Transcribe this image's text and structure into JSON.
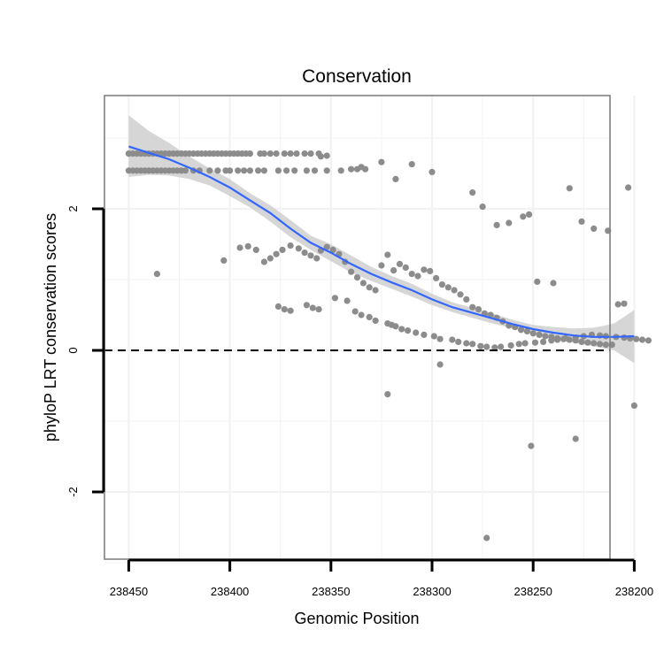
{
  "chart_data": {
    "type": "scatter",
    "title": "Conservation",
    "xlabel": "Genomic Position",
    "ylabel": "phyloP LRT conservation scores",
    "xlim": [
      238212,
      238462
    ],
    "x_reversed": true,
    "ylim": [
      -2.95,
      3.6
    ],
    "x_ticks": [
      238450,
      238400,
      238350,
      238300,
      238250,
      238200
    ],
    "x_tick_labels": [
      "238450",
      "238400",
      "238350",
      "238300",
      "238250",
      "238200"
    ],
    "y_ticks": [
      -2,
      0,
      2
    ],
    "y_tick_labels": [
      "-2",
      "0",
      "2"
    ],
    "reference_line": {
      "y": 0,
      "style": "dashed"
    },
    "grid": true,
    "legend": "none",
    "colors": {
      "points": "#8c8c8c",
      "smooth_line": "#3366ff",
      "confidence_band": "#cfcfcf",
      "panel_border": "#808080",
      "grid": "#f2f2f2",
      "axis_ticks": "#000000"
    },
    "series": [
      {
        "kind": "points",
        "x": [
          238450,
          238448,
          238446,
          238444,
          238442,
          238440,
          238438,
          238436,
          238434,
          238432,
          238430,
          238428,
          238426,
          238424,
          238422,
          238420,
          238418,
          238416,
          238414,
          238412,
          238410,
          238408,
          238406,
          238404,
          238402,
          238400,
          238398,
          238396,
          238394,
          238392,
          238390,
          238385,
          238383,
          238380,
          238377,
          238373,
          238370,
          238367,
          238363,
          238360,
          238356,
          238352,
          238450,
          238448,
          238446,
          238444,
          238442,
          238440,
          238438,
          238436,
          238434,
          238432,
          238430,
          238428,
          238426,
          238424,
          238422,
          238418,
          238415,
          238410,
          238406,
          238402,
          238400,
          238396,
          238393,
          238390,
          238386,
          238383,
          238376,
          238372,
          238368,
          238362,
          238358,
          238352,
          238345,
          238340,
          238337,
          238333,
          238436,
          238403,
          238395,
          238391,
          238387,
          238383,
          238380,
          238377,
          238374,
          238370,
          238366,
          238363,
          238360,
          238357,
          238355,
          238352,
          238349,
          238346,
          238343,
          238340,
          238337,
          238334,
          238331,
          238328,
          238325,
          238322,
          238319,
          238316,
          238313,
          238310,
          238307,
          238304,
          238301,
          238298,
          238295,
          238292,
          238289,
          238286,
          238283,
          238280,
          238277,
          238274,
          238271,
          238268,
          238265,
          238262,
          238259,
          238256,
          238253,
          238250,
          238247,
          238244,
          238241,
          238238,
          238235,
          238232,
          238229,
          238226,
          238223,
          238220,
          238217,
          238214,
          238211,
          238376,
          238373,
          238370,
          238362,
          238359,
          238356,
          238348,
          238342,
          238338,
          238335,
          238331,
          238328,
          238322,
          238320,
          238318,
          238315,
          238312,
          238308,
          238304,
          238299,
          238296,
          238290,
          238287,
          238283,
          238280,
          238276,
          238273,
          238269,
          238266,
          238261,
          238257,
          238254,
          238249,
          238245,
          238241,
          238238,
          238234,
          238229,
          238225,
          238221,
          238217,
          238214,
          238209,
          238205,
          238202,
          238199,
          238196,
          238193,
          238355,
          238335,
          238325,
          238318,
          238310,
          238300,
          238280,
          238275,
          238268,
          238262,
          238255,
          238252,
          238248,
          238240,
          238232,
          238226,
          238220,
          238213,
          238208,
          238205,
          238203,
          238322,
          238296,
          238273,
          238251,
          238229,
          238200
        ],
        "y": [
          2.78,
          2.78,
          2.78,
          2.78,
          2.78,
          2.78,
          2.78,
          2.78,
          2.78,
          2.78,
          2.78,
          2.78,
          2.78,
          2.78,
          2.78,
          2.78,
          2.78,
          2.78,
          2.78,
          2.78,
          2.78,
          2.78,
          2.78,
          2.78,
          2.78,
          2.78,
          2.78,
          2.78,
          2.78,
          2.78,
          2.78,
          2.78,
          2.78,
          2.78,
          2.78,
          2.78,
          2.78,
          2.78,
          2.78,
          2.78,
          2.78,
          2.75,
          2.54,
          2.54,
          2.54,
          2.54,
          2.54,
          2.54,
          2.54,
          2.54,
          2.54,
          2.54,
          2.54,
          2.54,
          2.54,
          2.54,
          2.54,
          2.54,
          2.54,
          2.54,
          2.54,
          2.54,
          2.54,
          2.54,
          2.54,
          2.54,
          2.54,
          2.54,
          2.54,
          2.54,
          2.54,
          2.54,
          2.54,
          2.54,
          2.54,
          2.56,
          2.56,
          2.56,
          1.08,
          1.27,
          1.45,
          1.47,
          1.42,
          1.25,
          1.3,
          1.36,
          1.42,
          1.48,
          1.44,
          1.38,
          1.34,
          1.3,
          1.41,
          1.46,
          1.42,
          1.36,
          1.25,
          1.11,
          1.03,
          0.95,
          0.89,
          0.85,
          1.2,
          1.35,
          1.13,
          1.22,
          1.17,
          1.08,
          1.05,
          1.14,
          1.12,
          1.02,
          0.93,
          0.89,
          0.85,
          0.79,
          0.72,
          0.61,
          0.58,
          0.52,
          0.5,
          0.46,
          0.41,
          0.35,
          0.33,
          0.29,
          0.27,
          0.24,
          0.22,
          0.2,
          0.19,
          0.17,
          0.16,
          0.15,
          0.14,
          0.12,
          0.11,
          0.1,
          0.09,
          0.08,
          0.08,
          0.62,
          0.58,
          0.56,
          0.64,
          0.6,
          0.58,
          0.74,
          0.7,
          0.55,
          0.5,
          0.47,
          0.42,
          0.38,
          0.36,
          0.34,
          0.3,
          0.28,
          0.25,
          0.22,
          0.2,
          0.16,
          0.15,
          0.12,
          0.1,
          0.09,
          0.06,
          0.05,
          0.04,
          0.05,
          0.07,
          0.09,
          0.1,
          0.11,
          0.12,
          0.14,
          0.15,
          0.17,
          0.18,
          0.2,
          0.22,
          0.21,
          0.2,
          0.19,
          0.18,
          0.17,
          0.16,
          0.15,
          0.14,
          2.74,
          2.59,
          2.66,
          2.42,
          2.63,
          2.52,
          2.23,
          2.03,
          1.77,
          1.8,
          1.89,
          1.92,
          0.97,
          0.95,
          2.29,
          1.82,
          1.72,
          1.69,
          0.65,
          0.66,
          2.3,
          -0.62,
          -0.2,
          -2.65,
          -1.35,
          -1.25,
          -0.78
        ],
        "note": ""
      },
      {
        "kind": "loess",
        "x": [
          238450,
          238440,
          238430,
          238420,
          238410,
          238400,
          238390,
          238380,
          238370,
          238360,
          238350,
          238340,
          238330,
          238320,
          238310,
          238300,
          238290,
          238280,
          238270,
          238260,
          238250,
          238240,
          238230,
          238220,
          238210,
          238200
        ],
        "y": [
          2.88,
          2.79,
          2.7,
          2.58,
          2.45,
          2.3,
          2.12,
          1.94,
          1.72,
          1.52,
          1.38,
          1.22,
          1.08,
          0.96,
          0.85,
          0.72,
          0.61,
          0.53,
          0.45,
          0.37,
          0.3,
          0.25,
          0.21,
          0.19,
          0.19,
          0.2
        ],
        "band_lower": [
          2.45,
          2.48,
          2.47,
          2.42,
          2.33,
          2.18,
          2.02,
          1.82,
          1.6,
          1.42,
          1.26,
          1.1,
          0.98,
          0.87,
          0.76,
          0.64,
          0.54,
          0.46,
          0.38,
          0.31,
          0.24,
          0.17,
          0.11,
          0.06,
          0.0,
          -0.18
        ],
        "band_upper": [
          3.32,
          3.1,
          2.93,
          2.74,
          2.57,
          2.42,
          2.22,
          2.05,
          1.84,
          1.62,
          1.5,
          1.34,
          1.18,
          1.05,
          0.94,
          0.8,
          0.68,
          0.6,
          0.52,
          0.43,
          0.36,
          0.33,
          0.31,
          0.32,
          0.38,
          0.57
        ]
      }
    ]
  }
}
